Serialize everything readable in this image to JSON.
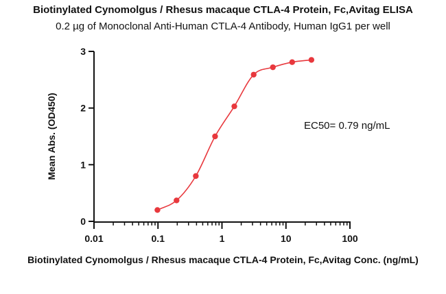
{
  "chart_data": {
    "type": "scatter",
    "title": "Biotinylated Cynomolgus / Rhesus macaque CTLA-4 Protein, Fc,Avitag ELISA",
    "subtitle": "0.2 µg of Monoclonal Anti-Human CTLA-4 Antibody, Human IgG1 per well",
    "xlabel": "Biotinylated Cynomolgus / Rhesus macaque CTLA-4 Protein, Fc,Avitag Conc. (ng/mL)",
    "ylabel": "Mean Abs. (OD450)",
    "xscale": "log",
    "xlim": [
      0.01,
      100
    ],
    "ylim": [
      0,
      3
    ],
    "xticks": [
      "0.01",
      "0.1",
      "1",
      "10",
      "100"
    ],
    "yticks": [
      "0",
      "1",
      "2",
      "3"
    ],
    "annotation": "EC50= 0.79 ng/mL",
    "color": "#e8383d",
    "series": [
      {
        "x": [
          0.098,
          0.195,
          0.39,
          0.78,
          1.56,
          3.13,
          6.25,
          12.5,
          25
        ],
        "y": [
          0.2,
          0.37,
          0.8,
          1.5,
          2.03,
          2.59,
          2.72,
          2.81,
          2.85
        ]
      }
    ]
  }
}
